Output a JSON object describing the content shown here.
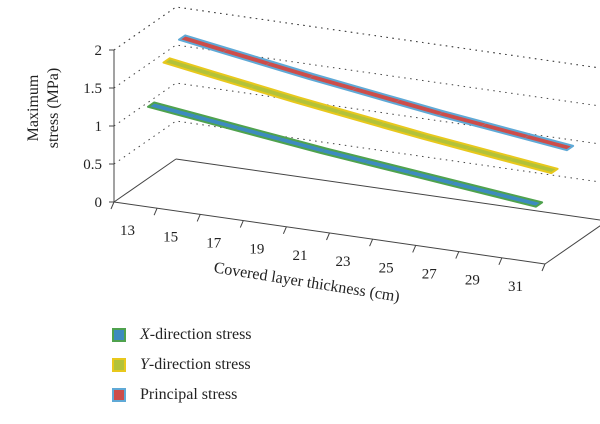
{
  "chart_data": {
    "type": "line",
    "style": "3d-ribbon",
    "x": [
      "13",
      "15",
      "17",
      "19",
      "21",
      "23",
      "25",
      "27",
      "29",
      "31"
    ],
    "ylabel_lines": [
      "Maximum",
      "stress (MPa)"
    ],
    "xlabel": "Covered layer thickness (cm)",
    "yticks": [
      "0",
      "0.5",
      "1",
      "1.5",
      "2"
    ],
    "ylim": [
      0,
      2
    ],
    "grid": "dotted horizontal",
    "legend_position": "bottom-left",
    "series": [
      {
        "name_prefix": "X",
        "name_rest": "-direction stress",
        "values": [
          1.18,
          1.11,
          1.04,
          0.97,
          0.9,
          0.84,
          0.78,
          0.72,
          0.66,
          0.6
        ],
        "color": "#3d8bbf",
        "edge": "#4fa24e"
      },
      {
        "name_prefix": "Y",
        "name_rest": "-direction stress",
        "values": [
          1.62,
          1.53,
          1.44,
          1.35,
          1.27,
          1.19,
          1.11,
          1.04,
          0.97,
          0.9
        ],
        "color": "#b3c239",
        "edge": "#e8c81c"
      },
      {
        "name_prefix": "",
        "name_rest": "Principal stress",
        "values": [
          1.78,
          1.69,
          1.6,
          1.51,
          1.43,
          1.35,
          1.27,
          1.2,
          1.13,
          1.06
        ],
        "color": "#cd4d4a",
        "edge": "#5fa9d6"
      }
    ]
  }
}
